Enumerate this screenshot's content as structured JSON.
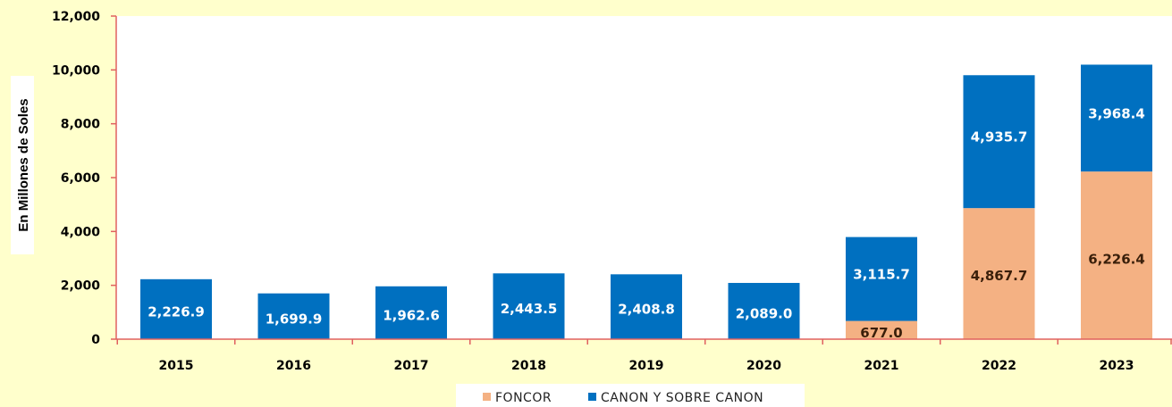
{
  "chart_data": {
    "type": "bar",
    "stacked": true,
    "categories": [
      "2015",
      "2016",
      "2017",
      "2018",
      "2019",
      "2020",
      "2021",
      "2022",
      "2023"
    ],
    "series": [
      {
        "name": "FONCOR",
        "color": "#F4B183",
        "label_color": "#3A1F0A",
        "values": [
          0,
          0,
          0,
          0,
          0,
          0,
          677.0,
          4867.7,
          6226.4
        ],
        "labels": [
          "",
          "",
          "",
          "",
          "",
          "",
          "677.0",
          "4,867.7",
          "6,226.4"
        ]
      },
      {
        "name": "CANON Y SOBRE CANON",
        "color": "#0070C0",
        "label_color": "#FFFFFF",
        "values": [
          2226.9,
          1699.9,
          1962.6,
          2443.5,
          2408.8,
          2089.0,
          3115.7,
          4935.7,
          3968.4
        ],
        "labels": [
          "2,226.9",
          "1,699.9",
          "1,962.6",
          "2,443.5",
          "2,408.8",
          "2,089.0",
          "3,115.7",
          "4,935.7",
          "3,968.4"
        ]
      }
    ],
    "ylabel": "En Millones de Soles",
    "ylim": [
      0,
      12000
    ],
    "yticks": [
      0,
      2000,
      4000,
      6000,
      8000,
      10000,
      12000
    ],
    "ytick_labels": [
      "0",
      "2,000",
      "4,000",
      "6,000",
      "8,000",
      "10,000",
      "12,000"
    ],
    "grid": false,
    "legend": "bottom",
    "colors": {
      "axis": "#E06060",
      "plot_background": "#FFFFFF",
      "page_background": "#FFFFCC"
    }
  }
}
